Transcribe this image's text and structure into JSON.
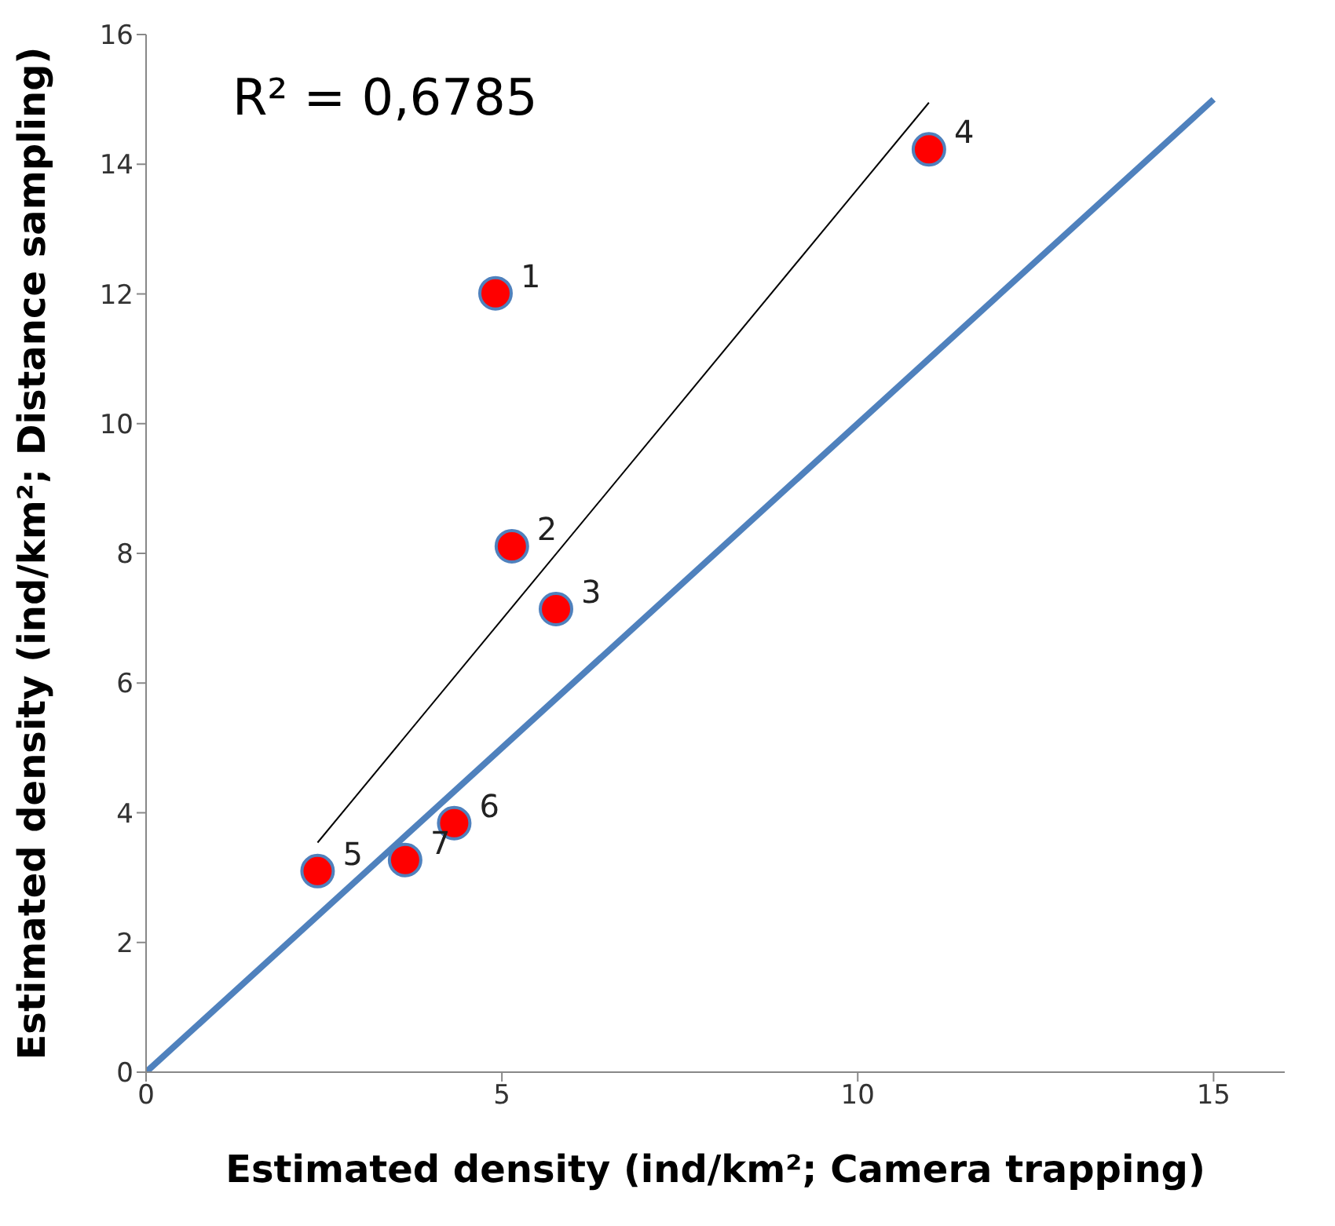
{
  "chart_data": {
    "type": "scatter",
    "xlabel": "Estimated density (ind/km²; Camera trapping)",
    "ylabel": "Estimated density (ind/km²; Distance sampling)",
    "annotations": [
      "R² = 0,6785",
      {
        "text": "1",
        "x": 4.91,
        "y": 12.01
      },
      {
        "text": "2",
        "x": 5.14,
        "y": 8.11
      },
      {
        "text": "3",
        "x": 5.76,
        "y": 7.14
      },
      {
        "text": "4",
        "x": 11.0,
        "y": 14.23
      },
      {
        "text": "5",
        "x": 2.41,
        "y": 3.1
      },
      {
        "text": "6",
        "x": 4.33,
        "y": 3.84
      },
      {
        "text": "7",
        "x": 3.64,
        "y": 3.27
      }
    ],
    "xlim": [
      0,
      16
    ],
    "xticks": [
      0,
      5,
      10,
      15
    ],
    "ylim": [
      0,
      16
    ],
    "yticks": [
      0,
      2,
      4,
      6,
      8,
      10,
      12,
      14,
      16
    ],
    "series": [
      {
        "type": "line",
        "color": "#4f81bd",
        "x": [
          0,
          15
        ],
        "values": [
          0,
          15
        ],
        "marker": "none"
      },
      {
        "type": "line",
        "color": "#000000",
        "x": [
          2.41,
          11.0
        ],
        "values": [
          3.54,
          14.95
        ],
        "marker": "none"
      },
      {
        "color": "#ff0000",
        "marker": "circle",
        "x": [
          4.91,
          5.14,
          5.76,
          11.0,
          2.41,
          4.33,
          3.64
        ],
        "values": [
          12.01,
          8.11,
          7.14,
          14.23,
          3.1,
          3.84,
          3.27
        ]
      }
    ]
  }
}
